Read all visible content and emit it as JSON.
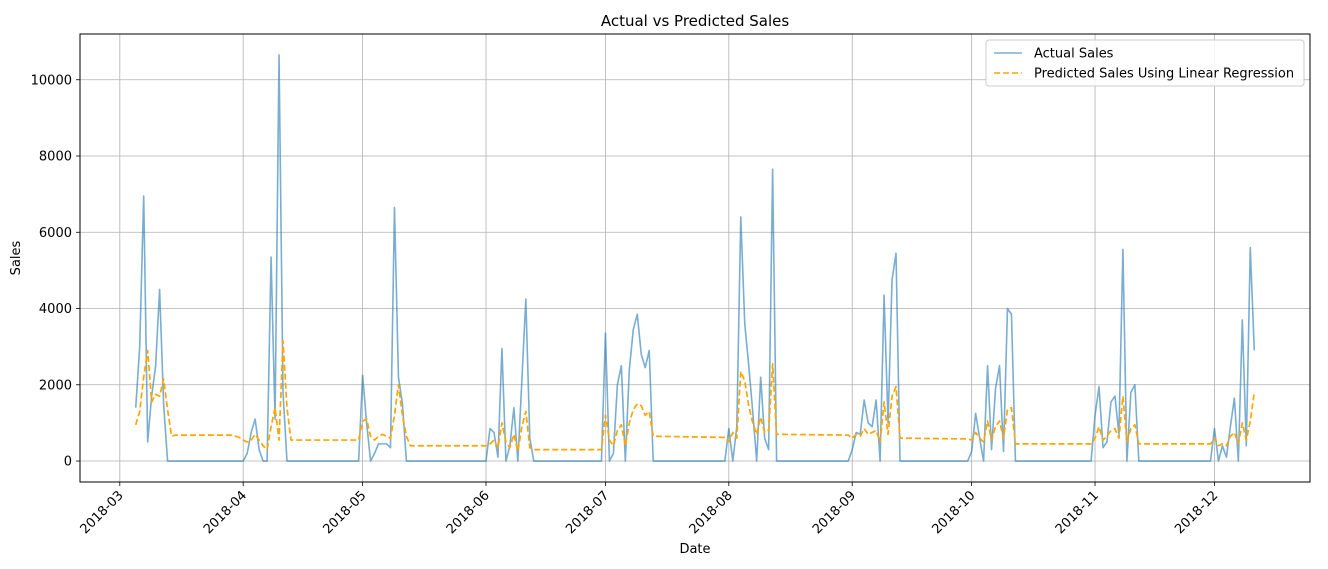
{
  "chart_data": {
    "type": "line",
    "title": "Actual vs Predicted Sales",
    "xlabel": "Date",
    "ylabel": "Sales",
    "xlim": [
      "2018-02-19",
      "2018-12-25"
    ],
    "ylim": [
      -550,
      11200
    ],
    "x_ticks": [
      "2018-03-01",
      "2018-04-01",
      "2018-05-01",
      "2018-06-01",
      "2018-07-01",
      "2018-08-01",
      "2018-09-01",
      "2018-10-01",
      "2018-11-01",
      "2018-12-01"
    ],
    "x_tick_labels": [
      "2018-03",
      "2018-04",
      "2018-05",
      "2018-06",
      "2018-07",
      "2018-08",
      "2018-09",
      "2018-10",
      "2018-11",
      "2018-12"
    ],
    "y_ticks": [
      0,
      2000,
      4000,
      6000,
      8000,
      10000
    ],
    "y_tick_labels": [
      "0",
      "2000",
      "4000",
      "6000",
      "8000",
      "10000"
    ],
    "grid": true,
    "legend_position": "top-right",
    "series": [
      {
        "name": "Actual Sales",
        "color": "#1f77b4",
        "opacity": 0.6,
        "style": "solid",
        "points": [
          [
            "2018-03-05",
            1400
          ],
          [
            "2018-03-06",
            3000
          ],
          [
            "2018-03-07",
            6950
          ],
          [
            "2018-03-08",
            500
          ],
          [
            "2018-03-09",
            1700
          ],
          [
            "2018-03-10",
            2500
          ],
          [
            "2018-03-11",
            4500
          ],
          [
            "2018-03-12",
            1500
          ],
          [
            "2018-03-13",
            0
          ],
          [
            "2018-03-31",
            0
          ],
          [
            "2018-04-01",
            0
          ],
          [
            "2018-04-02",
            200
          ],
          [
            "2018-04-03",
            750
          ],
          [
            "2018-04-04",
            1100
          ],
          [
            "2018-04-05",
            300
          ],
          [
            "2018-04-06",
            0
          ],
          [
            "2018-04-07",
            0
          ],
          [
            "2018-04-08",
            5350
          ],
          [
            "2018-04-09",
            1100
          ],
          [
            "2018-04-10",
            10650
          ],
          [
            "2018-04-11",
            1800
          ],
          [
            "2018-04-12",
            0
          ],
          [
            "2018-04-30",
            0
          ],
          [
            "2018-05-01",
            2250
          ],
          [
            "2018-05-02",
            1000
          ],
          [
            "2018-05-03",
            0
          ],
          [
            "2018-05-04",
            200
          ],
          [
            "2018-05-05",
            450
          ],
          [
            "2018-05-06",
            450
          ],
          [
            "2018-05-07",
            450
          ],
          [
            "2018-05-08",
            350
          ],
          [
            "2018-05-09",
            6650
          ],
          [
            "2018-05-10",
            2200
          ],
          [
            "2018-05-11",
            1500
          ],
          [
            "2018-05-12",
            0
          ],
          [
            "2018-05-31",
            0
          ],
          [
            "2018-06-01",
            0
          ],
          [
            "2018-06-02",
            850
          ],
          [
            "2018-06-03",
            750
          ],
          [
            "2018-06-04",
            100
          ],
          [
            "2018-06-05",
            2950
          ],
          [
            "2018-06-06",
            0
          ],
          [
            "2018-06-07",
            400
          ],
          [
            "2018-06-08",
            1400
          ],
          [
            "2018-06-09",
            0
          ],
          [
            "2018-06-10",
            2100
          ],
          [
            "2018-06-11",
            4250
          ],
          [
            "2018-06-12",
            600
          ],
          [
            "2018-06-13",
            0
          ],
          [
            "2018-06-30",
            0
          ],
          [
            "2018-07-01",
            3350
          ],
          [
            "2018-07-02",
            0
          ],
          [
            "2018-07-03",
            200
          ],
          [
            "2018-07-04",
            2000
          ],
          [
            "2018-07-05",
            2500
          ],
          [
            "2018-07-06",
            0
          ],
          [
            "2018-07-07",
            2400
          ],
          [
            "2018-07-08",
            3450
          ],
          [
            "2018-07-09",
            3850
          ],
          [
            "2018-07-10",
            2800
          ],
          [
            "2018-07-11",
            2450
          ],
          [
            "2018-07-12",
            2900
          ],
          [
            "2018-07-13",
            0
          ],
          [
            "2018-07-31",
            0
          ],
          [
            "2018-08-01",
            850
          ],
          [
            "2018-08-02",
            0
          ],
          [
            "2018-08-03",
            900
          ],
          [
            "2018-08-04",
            6400
          ],
          [
            "2018-08-05",
            3600
          ],
          [
            "2018-08-06",
            2500
          ],
          [
            "2018-08-07",
            1300
          ],
          [
            "2018-08-08",
            0
          ],
          [
            "2018-08-09",
            2200
          ],
          [
            "2018-08-10",
            600
          ],
          [
            "2018-08-11",
            300
          ],
          [
            "2018-08-12",
            7650
          ],
          [
            "2018-08-13",
            0
          ],
          [
            "2018-08-31",
            0
          ],
          [
            "2018-09-01",
            300
          ],
          [
            "2018-09-02",
            750
          ],
          [
            "2018-09-03",
            700
          ],
          [
            "2018-09-04",
            1600
          ],
          [
            "2018-09-05",
            1000
          ],
          [
            "2018-09-06",
            900
          ],
          [
            "2018-09-07",
            1600
          ],
          [
            "2018-09-08",
            0
          ],
          [
            "2018-09-09",
            4350
          ],
          [
            "2018-09-10",
            1000
          ],
          [
            "2018-09-11",
            4750
          ],
          [
            "2018-09-12",
            5450
          ],
          [
            "2018-09-13",
            0
          ],
          [
            "2018-09-30",
            0
          ],
          [
            "2018-10-01",
            250
          ],
          [
            "2018-10-02",
            1250
          ],
          [
            "2018-10-03",
            600
          ],
          [
            "2018-10-04",
            0
          ],
          [
            "2018-10-05",
            2500
          ],
          [
            "2018-10-06",
            300
          ],
          [
            "2018-10-07",
            1900
          ],
          [
            "2018-10-08",
            2500
          ],
          [
            "2018-10-09",
            250
          ],
          [
            "2018-10-10",
            4000
          ],
          [
            "2018-10-11",
            3850
          ],
          [
            "2018-10-12",
            0
          ],
          [
            "2018-10-31",
            0
          ],
          [
            "2018-11-01",
            1200
          ],
          [
            "2018-11-02",
            1950
          ],
          [
            "2018-11-03",
            350
          ],
          [
            "2018-11-04",
            500
          ],
          [
            "2018-11-05",
            1550
          ],
          [
            "2018-11-06",
            1700
          ],
          [
            "2018-11-07",
            700
          ],
          [
            "2018-11-08",
            5550
          ],
          [
            "2018-11-09",
            0
          ],
          [
            "2018-11-10",
            1800
          ],
          [
            "2018-11-11",
            2000
          ],
          [
            "2018-11-12",
            0
          ],
          [
            "2018-11-30",
            0
          ],
          [
            "2018-12-01",
            850
          ],
          [
            "2018-12-02",
            0
          ],
          [
            "2018-12-03",
            400
          ],
          [
            "2018-12-04",
            100
          ],
          [
            "2018-12-05",
            900
          ],
          [
            "2018-12-06",
            1650
          ],
          [
            "2018-12-07",
            0
          ],
          [
            "2018-12-08",
            3700
          ],
          [
            "2018-12-09",
            400
          ],
          [
            "2018-12-10",
            5600
          ],
          [
            "2018-12-11",
            2900
          ]
        ]
      },
      {
        "name": "Predicted Sales Using Linear Regression",
        "color": "#ffa500",
        "opacity": 1,
        "style": "dashed",
        "points": [
          [
            "2018-03-05",
            950
          ],
          [
            "2018-03-06",
            1300
          ],
          [
            "2018-03-07",
            2200
          ],
          [
            "2018-03-08",
            2900
          ],
          [
            "2018-03-09",
            1550
          ],
          [
            "2018-03-10",
            1750
          ],
          [
            "2018-03-11",
            1700
          ],
          [
            "2018-03-12",
            2150
          ],
          [
            "2018-03-13",
            1350
          ],
          [
            "2018-03-14",
            650
          ],
          [
            "2018-03-15",
            680
          ],
          [
            "2018-03-29",
            680
          ],
          [
            "2018-03-31",
            620
          ],
          [
            "2018-04-01",
            550
          ],
          [
            "2018-04-02",
            500
          ],
          [
            "2018-04-03",
            550
          ],
          [
            "2018-04-04",
            700
          ],
          [
            "2018-04-05",
            550
          ],
          [
            "2018-04-06",
            400
          ],
          [
            "2018-04-07",
            300
          ],
          [
            "2018-04-08",
            900
          ],
          [
            "2018-04-09",
            1400
          ],
          [
            "2018-04-10",
            550
          ],
          [
            "2018-04-11",
            3150
          ],
          [
            "2018-04-12",
            1400
          ],
          [
            "2018-04-13",
            550
          ],
          [
            "2018-04-30",
            550
          ],
          [
            "2018-05-01",
            1050
          ],
          [
            "2018-05-02",
            1100
          ],
          [
            "2018-05-03",
            650
          ],
          [
            "2018-05-04",
            550
          ],
          [
            "2018-05-05",
            650
          ],
          [
            "2018-05-06",
            700
          ],
          [
            "2018-05-07",
            650
          ],
          [
            "2018-05-08",
            600
          ],
          [
            "2018-05-09",
            1200
          ],
          [
            "2018-05-10",
            2000
          ],
          [
            "2018-05-11",
            1200
          ],
          [
            "2018-05-12",
            650
          ],
          [
            "2018-05-13",
            400
          ],
          [
            "2018-05-31",
            400
          ],
          [
            "2018-06-01",
            400
          ],
          [
            "2018-06-02",
            450
          ],
          [
            "2018-06-03",
            550
          ],
          [
            "2018-06-04",
            350
          ],
          [
            "2018-06-05",
            1000
          ],
          [
            "2018-06-06",
            500
          ],
          [
            "2018-06-07",
            350
          ],
          [
            "2018-06-08",
            700
          ],
          [
            "2018-06-09",
            250
          ],
          [
            "2018-06-10",
            900
          ],
          [
            "2018-06-11",
            1300
          ],
          [
            "2018-06-12",
            350
          ],
          [
            "2018-06-13",
            300
          ],
          [
            "2018-06-30",
            300
          ],
          [
            "2018-07-01",
            1200
          ],
          [
            "2018-07-02",
            550
          ],
          [
            "2018-07-03",
            400
          ],
          [
            "2018-07-04",
            800
          ],
          [
            "2018-07-05",
            950
          ],
          [
            "2018-07-06",
            400
          ],
          [
            "2018-07-07",
            1000
          ],
          [
            "2018-07-08",
            1350
          ],
          [
            "2018-07-09",
            1500
          ],
          [
            "2018-07-10",
            1450
          ],
          [
            "2018-07-11",
            1200
          ],
          [
            "2018-07-12",
            1300
          ],
          [
            "2018-07-13",
            650
          ],
          [
            "2018-07-31",
            620
          ],
          [
            "2018-08-01",
            500
          ],
          [
            "2018-08-02",
            750
          ],
          [
            "2018-08-03",
            600
          ],
          [
            "2018-08-04",
            2350
          ],
          [
            "2018-08-05",
            2100
          ],
          [
            "2018-08-06",
            1450
          ],
          [
            "2018-08-07",
            1000
          ],
          [
            "2018-08-08",
            700
          ],
          [
            "2018-08-09",
            1150
          ],
          [
            "2018-08-10",
            750
          ],
          [
            "2018-08-11",
            800
          ],
          [
            "2018-08-12",
            2550
          ],
          [
            "2018-08-13",
            700
          ],
          [
            "2018-08-31",
            680
          ],
          [
            "2018-09-01",
            600
          ],
          [
            "2018-09-02",
            700
          ],
          [
            "2018-09-03",
            650
          ],
          [
            "2018-09-04",
            850
          ],
          [
            "2018-09-05",
            700
          ],
          [
            "2018-09-06",
            750
          ],
          [
            "2018-09-07",
            800
          ],
          [
            "2018-09-08",
            500
          ],
          [
            "2018-09-09",
            1550
          ],
          [
            "2018-09-10",
            700
          ],
          [
            "2018-09-11",
            1700
          ],
          [
            "2018-09-12",
            1950
          ],
          [
            "2018-09-13",
            600
          ],
          [
            "2018-09-30",
            580
          ],
          [
            "2018-10-01",
            550
          ],
          [
            "2018-10-02",
            750
          ],
          [
            "2018-10-03",
            600
          ],
          [
            "2018-10-04",
            500
          ],
          [
            "2018-10-05",
            1050
          ],
          [
            "2018-10-06",
            550
          ],
          [
            "2018-10-07",
            900
          ],
          [
            "2018-10-08",
            1050
          ],
          [
            "2018-10-09",
            600
          ],
          [
            "2018-10-10",
            1350
          ],
          [
            "2018-10-11",
            1400
          ],
          [
            "2018-10-12",
            450
          ],
          [
            "2018-10-31",
            450
          ],
          [
            "2018-11-01",
            600
          ],
          [
            "2018-11-02",
            900
          ],
          [
            "2018-11-03",
            550
          ],
          [
            "2018-11-04",
            650
          ],
          [
            "2018-11-05",
            800
          ],
          [
            "2018-11-06",
            850
          ],
          [
            "2018-11-07",
            600
          ],
          [
            "2018-11-08",
            1700
          ],
          [
            "2018-11-09",
            500
          ],
          [
            "2018-11-10",
            850
          ],
          [
            "2018-11-11",
            950
          ],
          [
            "2018-11-12",
            450
          ],
          [
            "2018-11-30",
            450
          ],
          [
            "2018-12-01",
            600
          ],
          [
            "2018-12-02",
            400
          ],
          [
            "2018-12-03",
            450
          ],
          [
            "2018-12-04",
            400
          ],
          [
            "2018-12-05",
            650
          ],
          [
            "2018-12-06",
            750
          ],
          [
            "2018-12-07",
            450
          ],
          [
            "2018-12-08",
            1000
          ],
          [
            "2018-12-09",
            550
          ],
          [
            "2018-12-10",
            1050
          ],
          [
            "2018-12-11",
            1800
          ]
        ]
      }
    ]
  }
}
